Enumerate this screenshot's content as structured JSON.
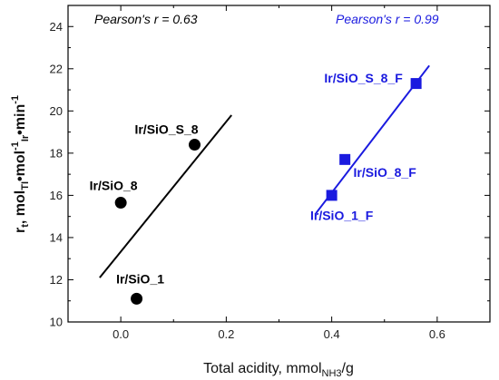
{
  "chart_data": {
    "type": "scatter",
    "xlabel": {
      "main": "Total acidity, mmol",
      "sub": "NH3",
      "tail": "/g"
    },
    "ylabel": {
      "parts": [
        {
          "t": "r"
        },
        {
          "t": "t",
          "sub": true
        },
        {
          "t": ", mol"
        },
        {
          "t": "TI",
          "sub": true
        },
        {
          "t": "•mol"
        },
        {
          "t": "-1",
          "sup": true
        },
        {
          "t": "Ir",
          "sub": true
        },
        {
          "t": "•min"
        },
        {
          "t": "-1",
          "sup": true
        }
      ]
    },
    "xlim": [
      -0.1,
      0.7
    ],
    "ylim": [
      10,
      25
    ],
    "xticks": [
      0.0,
      0.2,
      0.4,
      0.6
    ],
    "xtick_labels": [
      "0.0",
      "0.2",
      "0.4",
      "0.6"
    ],
    "yticks": [
      10,
      12,
      14,
      16,
      18,
      20,
      22,
      24
    ],
    "ytick_labels": [
      "10",
      "12",
      "14",
      "16",
      "18",
      "20",
      "22",
      "24"
    ],
    "grid": false,
    "series": [
      {
        "color": "#000000",
        "marker": "circle",
        "points": [
          {
            "x": 0.0,
            "y": 15.65,
            "label": "Ir/SiO_8"
          },
          {
            "x": 0.03,
            "y": 11.1,
            "label": "Ir/SiO_1"
          },
          {
            "x": 0.14,
            "y": 18.4,
            "label": "Ir/SiO_S_8"
          }
        ],
        "fit": {
          "x": [
            -0.04,
            0.21
          ],
          "y": [
            12.1,
            19.8
          ]
        },
        "annotation": "Pearson's r = 0.63"
      },
      {
        "color": "#1a1adf",
        "marker": "square",
        "points": [
          {
            "x": 0.4,
            "y": 16.0,
            "label": "Ir/SiO_1_F"
          },
          {
            "x": 0.425,
            "y": 17.7,
            "label": "Ir/SiO_8_F"
          },
          {
            "x": 0.56,
            "y": 21.3,
            "label": "Ir/SiO_S_8_F"
          }
        ],
        "fit": {
          "x": [
            0.37,
            0.585
          ],
          "y": [
            15.15,
            22.15
          ]
        },
        "annotation": "Pearson's r = 0.99"
      }
    ]
  }
}
